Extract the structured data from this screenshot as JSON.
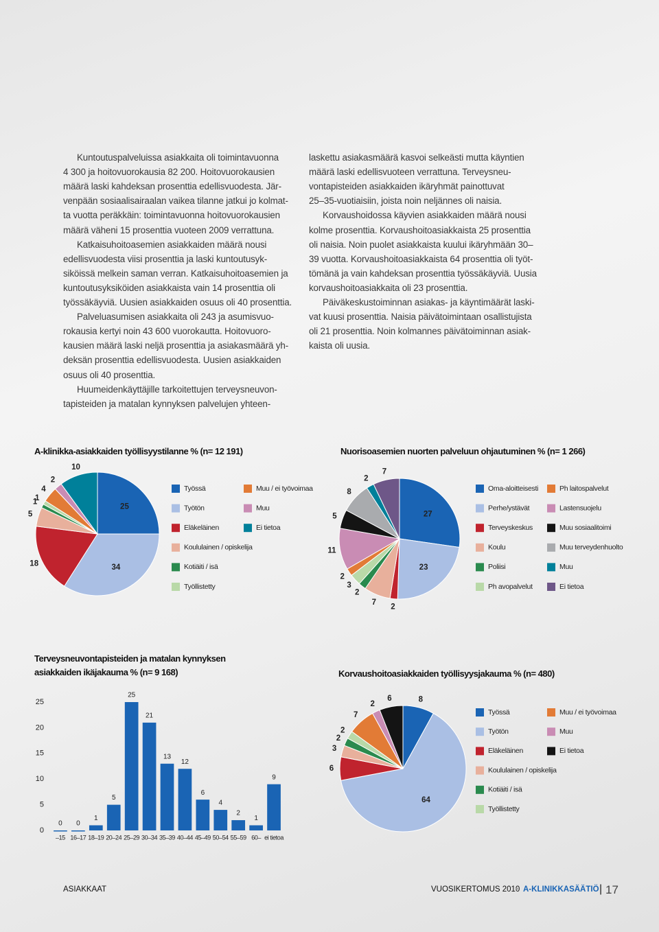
{
  "body_text": {
    "left": [
      [
        "Kuntoutuspalveluissa asiakkaita oli toimintavuonna",
        "4 300 ja hoitovuorokausia 82 200. Hoitovuorokausien",
        "määrä laski kahdeksan prosenttia edellisvuodesta. Jär-",
        "venpään sosiaalisairaalan vaikea tilanne jatkui jo kolmat-",
        "ta vuotta peräkkäin: toimintavuonna hoitovuorokausien",
        "määrä väheni 15 prosenttia vuoteen 2009 verrattuna."
      ],
      [
        "Katkaisuhoitoasemien asiakkaiden määrä nousi",
        "edellisvuodesta viisi prosenttia ja laski kuntoutusyk-",
        "siköissä melkein saman verran. Katkaisuhoitoasemien ja",
        "kuntoutusyksiköiden asiakkaista vain 14 prosenttia oli",
        "työssäkäyviä. Uusien asiakkaiden osuus oli 40 prosenttia."
      ],
      [
        "Palveluasumisen asiakkaita oli 243 ja asumisvuo-",
        "rokausia kertyi noin 43 600 vuorokautta. Hoitovuoro-",
        "kausien määrä laski neljä prosenttia ja asiakasmäärä yh-",
        "deksän prosenttia edellisvuodesta. Uusien asiakkaiden",
        "osuus oli 40 prosenttia."
      ],
      [
        "Huumeidenkäyttäjille tarkoitettujen terveysneuvon-",
        "tapisteiden ja matalan kynnyksen palvelujen yhteen-"
      ]
    ],
    "right": [
      [
        "laskettu asiakasmäärä kasvoi selkeästi mutta käyntien",
        "määrä laski edellisvuoteen verrattuna. Terveysneu-",
        "vontapisteiden asiakkaiden ikäryhmät painottuvat",
        "25–35-vuotiaisiin, joista noin neljännes oli naisia."
      ],
      [
        "Korvaushoidossa käyvien asiakkaiden määrä nousi",
        "kolme prosenttia. Korvaushoitoasiakkaista 25 prosenttia",
        "oli naisia. Noin puolet asiakkaista kuului ikäryhmään 30–",
        "39 vuotta. Korvaushoitoasiakkaista 64 prosenttia oli työt-",
        "tömänä ja vain kahdeksan prosenttia työssäkäyviä. Uusia",
        "korvaushoitoasiakkaita oli 23 prosenttia."
      ],
      [
        "Päiväkeskustoiminnan asiakas- ja käyntimäärät laski-",
        "vat kuusi prosenttia. Naisia päivätoimintaan osallistujista",
        "oli 21 prosenttia. Noin kolmannes päivätoiminnan asiak-",
        "kaista oli uusia."
      ]
    ]
  },
  "chart_data": [
    {
      "type": "pie",
      "title": "A-klinikka-asiakkaiden työllisyystilanne % (n= 12 191)",
      "categories": [
        "Työssä",
        "Työtön",
        "Eläkeläinen",
        "Koululainen / opiskelija",
        "Kotiäiti / isä",
        "Työllistetty",
        "Muu / ei työvoimaa",
        "Muu",
        "Ei tietoa"
      ],
      "values": [
        25,
        34,
        18,
        5,
        1,
        1,
        4,
        2,
        10
      ],
      "colors": [
        "#1a64b4",
        "#aabfe4",
        "#c0232e",
        "#e8b09c",
        "#2a8a4e",
        "#b9d9a8",
        "#e27b36",
        "#c98cb4",
        "#00809a"
      ]
    },
    {
      "type": "pie",
      "title": "Nuorisoasemien nuorten palveluun ohjautuminen % (n= 1 266)",
      "categories": [
        "Oma-aloitteisesti",
        "Perhe/ystävät",
        "Terveyskeskus",
        "Koulu",
        "Poliisi",
        "Ph avopalvelut",
        "Ph laitospalvelut",
        "Lastensuojelu",
        "Muu sosiaalitoimi",
        "Muu terveydenhuolto",
        "Muu",
        "Ei tietoa"
      ],
      "values": [
        27,
        23,
        2,
        7,
        2,
        3,
        2,
        11,
        5,
        8,
        2,
        7
      ],
      "colors": [
        "#1a64b4",
        "#aabfe4",
        "#c0232e",
        "#e8b09c",
        "#2a8a4e",
        "#b9d9a8",
        "#e27b36",
        "#c98cb4",
        "#141414",
        "#a9abae",
        "#00809a",
        "#6e5788"
      ]
    },
    {
      "type": "bar",
      "title": "Terveysneuvontapisteiden ja matalan kynnyksen asiakkaiden ikäjakauma % (n= 9 168)",
      "categories": [
        "–15",
        "16–17",
        "18–19",
        "20–24",
        "25–29",
        "30–34",
        "35–39",
        "40–44",
        "45–49",
        "50–54",
        "55–59",
        "60–",
        "ei tietoa"
      ],
      "values": [
        0,
        0,
        1,
        5,
        25,
        21,
        13,
        12,
        6,
        4,
        2,
        1,
        9
      ],
      "color": "#1a64b4",
      "ylim": [
        0,
        25
      ],
      "yticks": [
        0,
        5,
        10,
        15,
        20,
        25
      ]
    },
    {
      "type": "pie",
      "title": "Korvaushoitoasiakkaiden työllisyysjakauma % (n= 480)",
      "categories": [
        "Työssä",
        "Työtön",
        "Eläkeläinen",
        "Koululainen / opiskelija",
        "Kotiäiti / isä",
        "Työllistetty",
        "Muu / ei työvoimaa",
        "Muu",
        "Ei tietoa"
      ],
      "values": [
        8,
        64,
        6,
        3,
        2,
        2,
        7,
        2,
        6
      ],
      "colors": [
        "#1a64b4",
        "#aabfe4",
        "#c0232e",
        "#e8b09c",
        "#2a8a4e",
        "#b9d9a8",
        "#e27b36",
        "#c98cb4",
        "#141414"
      ]
    }
  ],
  "footer": {
    "section": "ASIAKKAAT",
    "report": "VUOSIKERTOMUS 2010",
    "org": "A-KLINIKKASÄÄTIÖ",
    "page": "17"
  }
}
